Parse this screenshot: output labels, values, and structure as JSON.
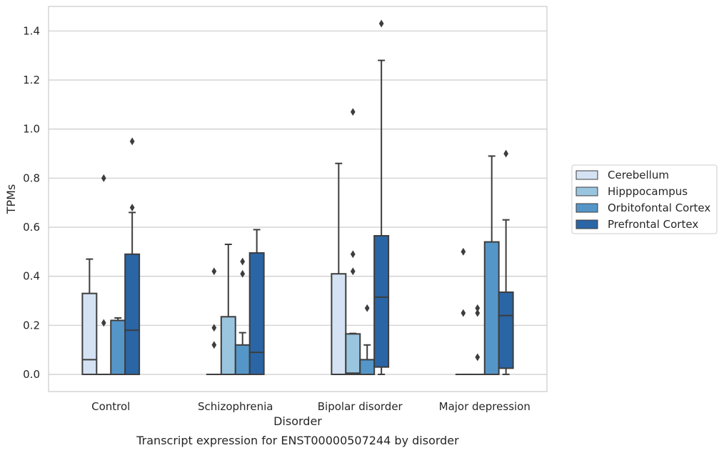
{
  "chart_data": {
    "type": "box",
    "xlabel": "Disorder",
    "ylabel": "TPMs",
    "caption": "Transcript expression for ENST00000507244 by disorder",
    "ylim": [
      -0.07,
      1.5
    ],
    "yticks": [
      "0.0",
      "0.2",
      "0.4",
      "0.6",
      "0.8",
      "1.0",
      "1.2",
      "1.4"
    ],
    "grid": "horizontal",
    "legend_position": "right",
    "categories": [
      "Control",
      "Schizophrenia",
      "Bipolar disorder",
      "Major depression"
    ],
    "series": [
      {
        "name": "Cerebellum",
        "color": "#d4e2f3",
        "boxes": [
          {
            "q1": 0.0,
            "median": 0.06,
            "q3": 0.33,
            "whislo": 0.0,
            "whishi": 0.47,
            "fliers": []
          },
          {
            "q1": 0.0,
            "median": 0.0,
            "q3": 0.0,
            "whislo": 0.0,
            "whishi": 0.0,
            "fliers": [
              0.42,
              0.19,
              0.12
            ]
          },
          {
            "q1": 0.0,
            "median": 0.0,
            "q3": 0.41,
            "whislo": 0.0,
            "whishi": 0.86,
            "fliers": []
          },
          {
            "q1": 0.0,
            "median": 0.0,
            "q3": 0.0,
            "whislo": 0.0,
            "whishi": 0.0,
            "fliers": [
              0.5,
              0.25
            ]
          }
        ]
      },
      {
        "name": "Hipppocampus",
        "color": "#9ac5df",
        "boxes": [
          {
            "q1": 0.0,
            "median": 0.0,
            "q3": 0.0,
            "whislo": 0.0,
            "whishi": 0.0,
            "fliers": [
              0.8,
              0.21
            ]
          },
          {
            "q1": 0.0,
            "median": 0.0,
            "q3": 0.235,
            "whislo": 0.0,
            "whishi": 0.53,
            "fliers": []
          },
          {
            "q1": 0.0,
            "median": 0.005,
            "q3": 0.165,
            "whislo": 0.0,
            "whishi": 0.167,
            "fliers": [
              1.07,
              0.49,
              0.42
            ]
          },
          {
            "q1": 0.0,
            "median": 0.0,
            "q3": 0.0,
            "whislo": 0.0,
            "whishi": 0.0,
            "fliers": [
              0.27,
              0.25,
              0.07
            ]
          }
        ]
      },
      {
        "name": "Orbitofontal Cortex",
        "color": "#5596c8",
        "boxes": [
          {
            "q1": 0.0,
            "median": 0.0,
            "q3": 0.22,
            "whislo": 0.0,
            "whishi": 0.23,
            "fliers": []
          },
          {
            "q1": 0.0,
            "median": 0.0,
            "q3": 0.12,
            "whislo": 0.0,
            "whishi": 0.17,
            "fliers": [
              0.46,
              0.41
            ]
          },
          {
            "q1": 0.0,
            "median": 0.0,
            "q3": 0.06,
            "whislo": 0.0,
            "whishi": 0.12,
            "fliers": [
              0.27
            ]
          },
          {
            "q1": 0.0,
            "median": 0.0,
            "q3": 0.54,
            "whislo": 0.0,
            "whishi": 0.89,
            "fliers": []
          }
        ]
      },
      {
        "name": "Prefrontal Cortex",
        "color": "#2a65a6",
        "boxes": [
          {
            "q1": 0.0,
            "median": 0.18,
            "q3": 0.49,
            "whislo": 0.0,
            "whishi": 0.66,
            "fliers": [
              0.95,
              0.68
            ]
          },
          {
            "q1": 0.0,
            "median": 0.09,
            "q3": 0.495,
            "whislo": 0.0,
            "whishi": 0.59,
            "fliers": []
          },
          {
            "q1": 0.03,
            "median": 0.315,
            "q3": 0.565,
            "whislo": 0.0,
            "whishi": 1.28,
            "fliers": [
              1.43
            ]
          },
          {
            "q1": 0.025,
            "median": 0.24,
            "q3": 0.335,
            "whislo": 0.0,
            "whishi": 0.63,
            "fliers": [
              0.9
            ]
          }
        ]
      }
    ]
  }
}
